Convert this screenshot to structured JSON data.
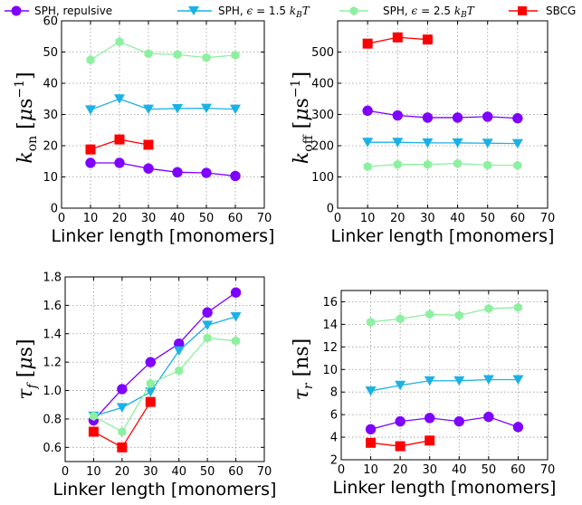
{
  "colors": {
    "SPH, repulsive": "#7f00ff",
    "SPH, eps1.5": "#1ab2e6",
    "SPH, eps2.5": "#8df0a0",
    "SBCG": "#ff0000"
  },
  "legend": {
    "entries": [
      {
        "key": "SPH, repulsive",
        "text": "SPH, repulsive",
        "marker": "circle",
        "color": "#7f00ff"
      },
      {
        "key": "SPH, eps1.5",
        "text": "SPH, ϵ = 1.5 k_BT",
        "marker": "triangle-down",
        "color": "#1ab2e6"
      },
      {
        "key": "SPH, eps2.5",
        "text": "SPH, ϵ = 2.5 k_BT",
        "marker": "hexagon",
        "color": "#8df0a0"
      },
      {
        "key": "SBCG",
        "text": "SBCG",
        "marker": "square",
        "color": "#ff0000"
      }
    ]
  },
  "chart_data": [
    {
      "type": "line",
      "xlabel": "Linker length [monomers]",
      "ylabel": "k_on [μs^-1]",
      "xlim": [
        0,
        70
      ],
      "ylim": [
        0,
        60
      ],
      "xticks": [
        0,
        10,
        20,
        30,
        40,
        50,
        60,
        70
      ],
      "yticks": [
        0,
        10,
        20,
        30,
        40,
        50,
        60
      ],
      "grid": true,
      "series": [
        {
          "name": "SPH, repulsive",
          "x": [
            10,
            20,
            30,
            40,
            50,
            60
          ],
          "y": [
            14.5,
            14.5,
            12.7,
            11.5,
            11.3,
            10.3
          ]
        },
        {
          "name": "SPH, eps1.5",
          "x": [
            10,
            20,
            30,
            40,
            50,
            60
          ],
          "y": [
            31.5,
            35,
            31.7,
            31.9,
            32,
            31.7
          ]
        },
        {
          "name": "SPH, eps2.5",
          "x": [
            10,
            20,
            30,
            40,
            50,
            60
          ],
          "y": [
            47.5,
            53.3,
            49.5,
            49.2,
            48.2,
            49
          ]
        },
        {
          "name": "SBCG",
          "x": [
            10,
            20,
            30
          ],
          "y": [
            18.8,
            22,
            20.3
          ]
        }
      ]
    },
    {
      "type": "line",
      "xlabel": "Linker length [monomers]",
      "ylabel": "k_off [μs^-1]",
      "xlim": [
        0,
        70
      ],
      "ylim": [
        0,
        600
      ],
      "xticks": [
        0,
        10,
        20,
        30,
        40,
        50,
        60,
        70
      ],
      "yticks": [
        0,
        100,
        200,
        300,
        400,
        500
      ],
      "grid": true,
      "series": [
        {
          "name": "SPH, repulsive",
          "x": [
            10,
            20,
            30,
            40,
            50,
            60
          ],
          "y": [
            312,
            297,
            290,
            290,
            293,
            288
          ]
        },
        {
          "name": "SPH, eps1.5",
          "x": [
            10,
            20,
            30,
            40,
            50,
            60
          ],
          "y": [
            211,
            211,
            209,
            209,
            208,
            207
          ]
        },
        {
          "name": "SPH, eps2.5",
          "x": [
            10,
            20,
            30,
            40,
            50,
            60
          ],
          "y": [
            133,
            140,
            140,
            143,
            138,
            137
          ]
        },
        {
          "name": "SBCG",
          "x": [
            10,
            20,
            30
          ],
          "y": [
            527,
            547,
            540
          ]
        }
      ]
    },
    {
      "type": "line",
      "xlabel": "Linker length [monomers]",
      "ylabel": "τ_f [μs]",
      "xlim": [
        0,
        70
      ],
      "ylim": [
        0.5,
        1.8
      ],
      "xticks": [
        0,
        10,
        20,
        30,
        40,
        50,
        60,
        70
      ],
      "yticks": [
        0.6,
        0.8,
        1.0,
        1.2,
        1.4,
        1.6,
        1.8
      ],
      "ytick_labels": [
        "0.6",
        "0.8",
        "1.0",
        "1.2",
        "1.4",
        "1.6",
        "1.8"
      ],
      "grid": true,
      "series": [
        {
          "name": "SPH, repulsive",
          "x": [
            10,
            20,
            30,
            40,
            50,
            60
          ],
          "y": [
            0.79,
            1.01,
            1.2,
            1.33,
            1.55,
            1.69
          ]
        },
        {
          "name": "SPH, eps1.5",
          "x": [
            10,
            20,
            30,
            40,
            50,
            60
          ],
          "y": [
            0.82,
            0.88,
            0.99,
            1.28,
            1.46,
            1.52
          ]
        },
        {
          "name": "SPH, eps2.5",
          "x": [
            10,
            20,
            30,
            40,
            50,
            60
          ],
          "y": [
            0.82,
            0.71,
            1.05,
            1.14,
            1.37,
            1.35
          ]
        },
        {
          "name": "SBCG",
          "x": [
            10,
            20,
            30
          ],
          "y": [
            0.71,
            0.6,
            0.92
          ]
        }
      ]
    },
    {
      "type": "line",
      "xlabel": "Linker length [monomers]",
      "ylabel": "τ_r [ns]",
      "xlim": [
        0,
        70
      ],
      "ylim": [
        2,
        17
      ],
      "xticks": [
        0,
        10,
        20,
        30,
        40,
        50,
        60,
        70
      ],
      "yticks": [
        2,
        4,
        6,
        8,
        10,
        12,
        14,
        16
      ],
      "grid": true,
      "series": [
        {
          "name": "SPH, repulsive",
          "x": [
            10,
            20,
            30,
            40,
            50,
            60
          ],
          "y": [
            4.7,
            5.4,
            5.7,
            5.4,
            5.8,
            4.9
          ]
        },
        {
          "name": "SPH, eps1.5",
          "x": [
            10,
            20,
            30,
            40,
            50,
            60
          ],
          "y": [
            8.1,
            8.6,
            9.0,
            9.0,
            9.1,
            9.1
          ]
        },
        {
          "name": "SPH, eps2.5",
          "x": [
            10,
            20,
            30,
            40,
            50,
            60
          ],
          "y": [
            14.2,
            14.5,
            14.9,
            14.8,
            15.4,
            15.5
          ]
        },
        {
          "name": "SBCG",
          "x": [
            10,
            20,
            30
          ],
          "y": [
            3.5,
            3.2,
            3.7
          ]
        }
      ]
    }
  ]
}
